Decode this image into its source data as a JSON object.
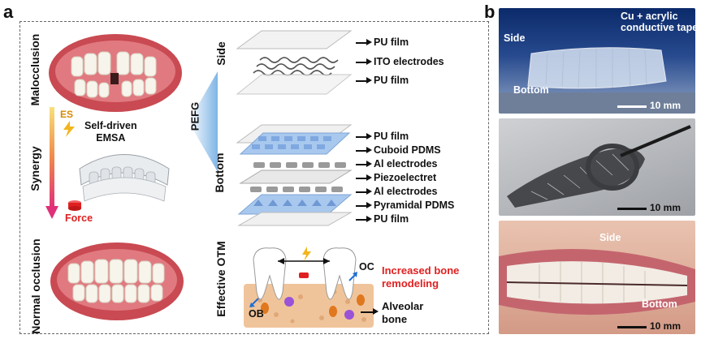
{
  "panels": {
    "a": "a",
    "b": "b"
  },
  "left": {
    "top_state": "Malocclusion",
    "bottom_state": "Normal occlusion",
    "synergy": "Synergy",
    "es": "ES",
    "device": "Self-driven\nEMSA",
    "force": "Force"
  },
  "middle": {
    "side_label": "Side",
    "bottom_label": "Bottom",
    "pefg_label": "PEFG",
    "otm_label": "Effective OTM",
    "side_layers": [
      "PU film",
      "ITO electrodes",
      "PU film"
    ],
    "bottom_layers": [
      "PU film",
      "Cuboid PDMS",
      "Al electrodes",
      "Piezoelectret",
      "Al electrodes",
      "Pyramidal PDMS",
      "PU film"
    ],
    "oc": "OC",
    "ob": "OB",
    "increased": "Increased bone\nremodeling",
    "alveolar": "Alveolar\nbone"
  },
  "right": {
    "photo1_side": "Side",
    "photo1_tape": "Cu + acrylic\nconductive tape",
    "photo1_bottom": "Bottom",
    "scale": "10 mm",
    "photo3_side": "Side",
    "photo3_bottom": "Bottom"
  },
  "colors": {
    "red": "#e02020",
    "blue": "#1f6fd6",
    "pefg_blue": "#7fb5e6"
  }
}
